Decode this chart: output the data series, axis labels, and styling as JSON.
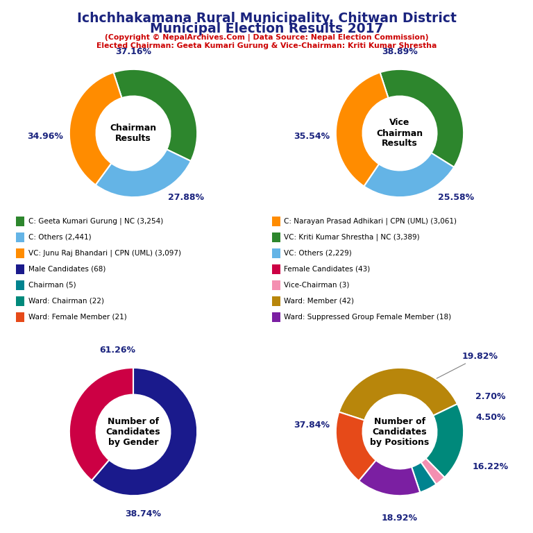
{
  "title_line1": "Ichchhakamana Rural Municipality, Chitwan District",
  "title_line2": "Municipal Election Results 2017",
  "subtitle1": "(Copyright © NepalArchives.Com | Data Source: Nepal Election Commission)",
  "subtitle2": "Elected Chairman: Geeta Kumari Gurung & Vice-Chairman: Kriti Kumar Shrestha",
  "chairman": {
    "label": "Chairman\nResults",
    "values": [
      37.16,
      27.88,
      34.96
    ],
    "colors": [
      "#2d862d",
      "#64b4e6",
      "#ff8c00"
    ],
    "startangle": 108,
    "pct_labels": [
      "37.16%",
      "27.88%",
      "34.96%"
    ]
  },
  "vice_chairman": {
    "label": "Vice\nChairman\nResults",
    "values": [
      38.89,
      25.58,
      35.54
    ],
    "colors": [
      "#2d862d",
      "#64b4e6",
      "#ff8c00"
    ],
    "startangle": 108,
    "pct_labels": [
      "38.89%",
      "25.58%",
      "35.54%"
    ]
  },
  "gender": {
    "label": "Number of\nCandidates\nby Gender",
    "values": [
      61.26,
      38.74
    ],
    "colors": [
      "#1a1a8c",
      "#cc0044"
    ],
    "startangle": 90,
    "pct_labels": [
      "61.26%",
      "38.74%"
    ]
  },
  "positions": {
    "label": "Number of\nCandidates\nby Positions",
    "values": [
      37.84,
      19.82,
      2.7,
      4.5,
      16.22,
      18.92
    ],
    "colors": [
      "#b8860b",
      "#00897b",
      "#f48fb1",
      "#00838f",
      "#7b1fa2",
      "#e64a19"
    ],
    "startangle": 162,
    "pct_labels": [
      "37.84%",
      "19.82%",
      "2.70%",
      "4.50%",
      "16.22%",
      "18.92%"
    ]
  },
  "legend_items_left": [
    {
      "label": "C: Geeta Kumari Gurung | NC (3,254)",
      "color": "#2d862d"
    },
    {
      "label": "C: Others (2,441)",
      "color": "#64b4e6"
    },
    {
      "label": "VC: Junu Raj Bhandari | CPN (UML) (3,097)",
      "color": "#ff8c00"
    },
    {
      "label": "Male Candidates (68)",
      "color": "#1a1a8c"
    },
    {
      "label": "Chairman (5)",
      "color": "#00838f"
    },
    {
      "label": "Ward: Chairman (22)",
      "color": "#00897b"
    },
    {
      "label": "Ward: Female Member (21)",
      "color": "#e64a19"
    }
  ],
  "legend_items_right": [
    {
      "label": "C: Narayan Prasad Adhikari | CPN (UML) (3,061)",
      "color": "#ff8c00"
    },
    {
      "label": "VC: Kriti Kumar Shrestha | NC (3,389)",
      "color": "#2d862d"
    },
    {
      "label": "VC: Others (2,229)",
      "color": "#64b4e6"
    },
    {
      "label": "Female Candidates (43)",
      "color": "#cc0044"
    },
    {
      "label": "Vice-Chairman (3)",
      "color": "#f48fb1"
    },
    {
      "label": "Ward: Member (42)",
      "color": "#b8860b"
    },
    {
      "label": "Ward: Suppressed Group Female Member (18)",
      "color": "#7b1fa2"
    }
  ],
  "bg_color": "#ffffff",
  "title_color": "#1a237e",
  "subtitle_color": "#cc0000",
  "pct_color": "#1a237e",
  "center_label_color": "#000000"
}
